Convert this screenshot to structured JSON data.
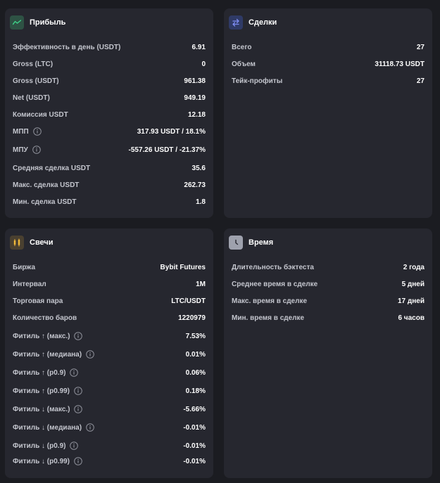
{
  "profit": {
    "title": "Прибыль",
    "icon": "trend-line-icon",
    "rows": [
      {
        "label": "Эффективность в день (USDT)",
        "value": "6.91"
      },
      {
        "label": "Gross (LTC)",
        "value": "0"
      },
      {
        "label": "Gross (USDT)",
        "value": "961.38"
      },
      {
        "label": "Net (USDT)",
        "value": "949.19"
      },
      {
        "label": "Комиссия USDT",
        "value": "12.18"
      },
      {
        "label": "МПП",
        "value": "317.93 USDT / 18.1%",
        "info": true
      },
      {
        "label": "МПУ",
        "value": "-557.26 USDT / -21.37%",
        "info": true
      },
      {
        "label": "Средняя сделка USDT",
        "value": "35.6"
      },
      {
        "label": "Макс. сделка USDT",
        "value": "262.73"
      },
      {
        "label": "Мин. сделка USDT",
        "value": "1.8"
      }
    ]
  },
  "deals": {
    "title": "Сделки",
    "icon": "swap-arrows-icon",
    "rows": [
      {
        "label": "Всего",
        "value": "27"
      },
      {
        "label": "Объем",
        "value": "31118.73 USDT"
      },
      {
        "label": "Тейк-профиты",
        "value": "27"
      }
    ]
  },
  "candles": {
    "title": "Свечи",
    "icon": "candlestick-icon",
    "rows": [
      {
        "label": "Биржа",
        "value": "Bybit Futures"
      },
      {
        "label": "Интервал",
        "value": "1M"
      },
      {
        "label": "Торговая пара",
        "value": "LTC/USDT"
      },
      {
        "label": "Количество баров",
        "value": "1220979"
      },
      {
        "label": "Фитиль ↑ (макс.)",
        "value": "7.53%",
        "info": true
      },
      {
        "label": "Фитиль ↑ (медиана)",
        "value": "0.01%",
        "info": true
      },
      {
        "label": "Фитиль ↑ (p0.9)",
        "value": "0.06%",
        "info": true
      },
      {
        "label": "Фитиль ↑ (p0.99)",
        "value": "0.18%",
        "info": true
      },
      {
        "label": "Фитиль ↓ (макс.)",
        "value": "-5.66%",
        "info": true
      },
      {
        "label": "Фитиль ↓ (медиана)",
        "value": "-0.01%",
        "info": true
      },
      {
        "label": "Фитиль ↓ (p0.9)",
        "value": "-0.01%",
        "info": true
      },
      {
        "label": "Фитиль ↓ (p0.99)",
        "value": "-0.01%",
        "info": true
      }
    ]
  },
  "time": {
    "title": "Время",
    "icon": "clock-icon",
    "rows": [
      {
        "label": "Длительность бэктеста",
        "value": "2 года"
      },
      {
        "label": "Среднее время в сделке",
        "value": "5 дней"
      },
      {
        "label": "Макс. время в сделке",
        "value": "17 дней"
      },
      {
        "label": "Мин. время в сделке",
        "value": "6 часов"
      }
    ]
  },
  "colors": {
    "background": "#1b1c21",
    "card": "#26272f",
    "profit_icon_bg": "#2e5244",
    "profit_icon_fg": "#3fd48a",
    "deals_icon_bg": "#2f3a66",
    "deals_icon_fg": "#7d8cf2",
    "candles_icon_bg": "#4a4030",
    "candles_icon_fg": "#f0b93a",
    "time_icon_bg": "#9ea1ad",
    "time_icon_fg": "#26272f"
  }
}
